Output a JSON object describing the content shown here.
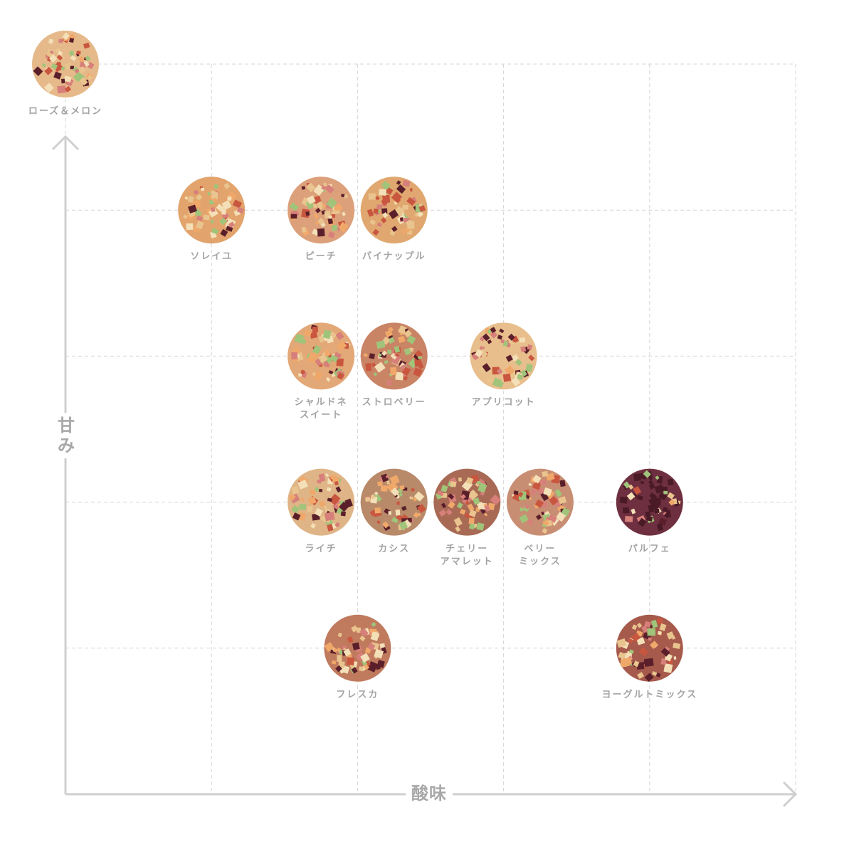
{
  "chart_data": {
    "type": "scatter",
    "title": "",
    "xlabel": "酸味",
    "ylabel": "甘\nみ",
    "xlim": [
      0,
      5
    ],
    "ylim": [
      0,
      5
    ],
    "grid": true,
    "legend": "none",
    "points": [
      {
        "label": "ローズ＆メロン",
        "x": 0,
        "y": 5,
        "color": "#e6b98a"
      },
      {
        "label": "ソレイユ",
        "x": 1,
        "y": 4,
        "color": "#e2a46c"
      },
      {
        "label": "ピーチ",
        "x": 1.75,
        "y": 4,
        "color": "#dca07a"
      },
      {
        "label": "パイナップル",
        "x": 2.25,
        "y": 4,
        "color": "#e0a870"
      },
      {
        "label": "シャルドネ\nスイート",
        "x": 1.75,
        "y": 3,
        "color": "#e3a877"
      },
      {
        "label": "ストロベリー",
        "x": 2.25,
        "y": 3,
        "color": "#c98466"
      },
      {
        "label": "アプリコット",
        "x": 3,
        "y": 3,
        "color": "#e8be8c"
      },
      {
        "label": "ライチ",
        "x": 1.75,
        "y": 2,
        "color": "#dfb486"
      },
      {
        "label": "カシス",
        "x": 2.25,
        "y": 2,
        "color": "#b88a6a"
      },
      {
        "label": "チェリー\nアマレット",
        "x": 2.75,
        "y": 2,
        "color": "#a86a55"
      },
      {
        "label": "ベリー\nミックス",
        "x": 3.25,
        "y": 2,
        "color": "#c88e74"
      },
      {
        "label": "パルフェ",
        "x": 4,
        "y": 2,
        "color": "#6e3040"
      },
      {
        "label": "フレスカ",
        "x": 2,
        "y": 1,
        "color": "#c07a5e"
      },
      {
        "label": "ヨーグルトミックス",
        "x": 4,
        "y": 1,
        "color": "#a65a4c"
      }
    ]
  }
}
